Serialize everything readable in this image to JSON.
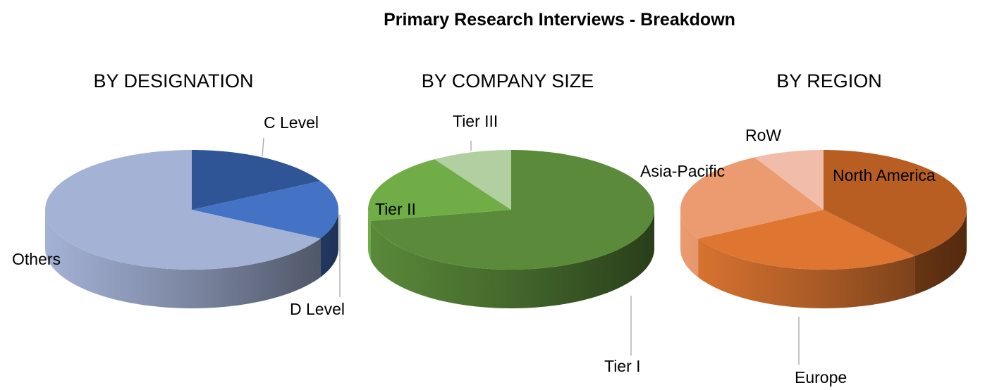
{
  "chart_data": [
    {
      "type": "pie",
      "title": "Primary Research Interviews - Breakdown",
      "subtitle": "BY DESIGNATION",
      "categories": [
        "C Level",
        "D Level",
        "Others"
      ],
      "values": [
        17,
        16,
        67
      ],
      "colors": [
        "#2f5597",
        "#4472c4",
        "#a4b2d6"
      ],
      "style": "3d"
    },
    {
      "type": "pie",
      "subtitle": "BY COMPANY SIZE",
      "categories": [
        "Tier I",
        "Tier II",
        "Tier III"
      ],
      "values": [
        72,
        19,
        9
      ],
      "colors": [
        "#5a8a3a",
        "#70ad47",
        "#b2cfa1"
      ],
      "style": "3d"
    },
    {
      "type": "pie",
      "subtitle": "BY REGION",
      "categories": [
        "North America",
        "Europe",
        "Asia-Pacific",
        "RoW"
      ],
      "values": [
        39,
        28,
        25,
        8
      ],
      "colors": [
        "#b95e22",
        "#de7631",
        "#ec9b70",
        "#f1bdaa"
      ],
      "style": "3d"
    }
  ]
}
